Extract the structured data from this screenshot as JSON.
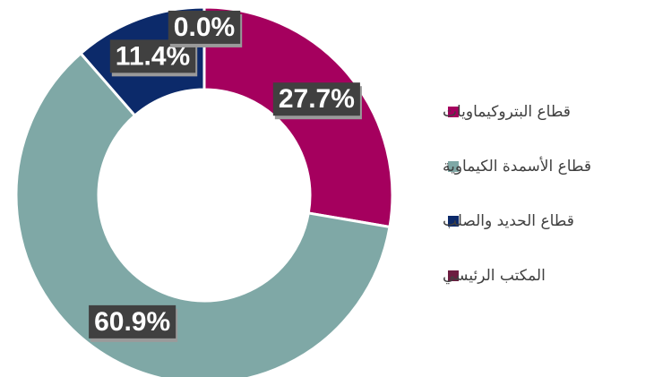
{
  "chart_data": {
    "type": "pie",
    "donut": true,
    "categories": [
      "قطاع البتروكيماويات",
      "قطاع الأسمدة الكيماوية",
      "قطاع الحديد والصلب",
      "المكتب الرئيسي"
    ],
    "values": [
      27.7,
      60.9,
      11.4,
      0.0
    ],
    "value_labels": [
      "27.7%",
      "60.9%",
      "11.4%",
      "0.0%"
    ],
    "colors": [
      "#a5005e",
      "#7fa8a6",
      "#0c2a6a",
      "#6c1d40"
    ],
    "legend": "right"
  }
}
